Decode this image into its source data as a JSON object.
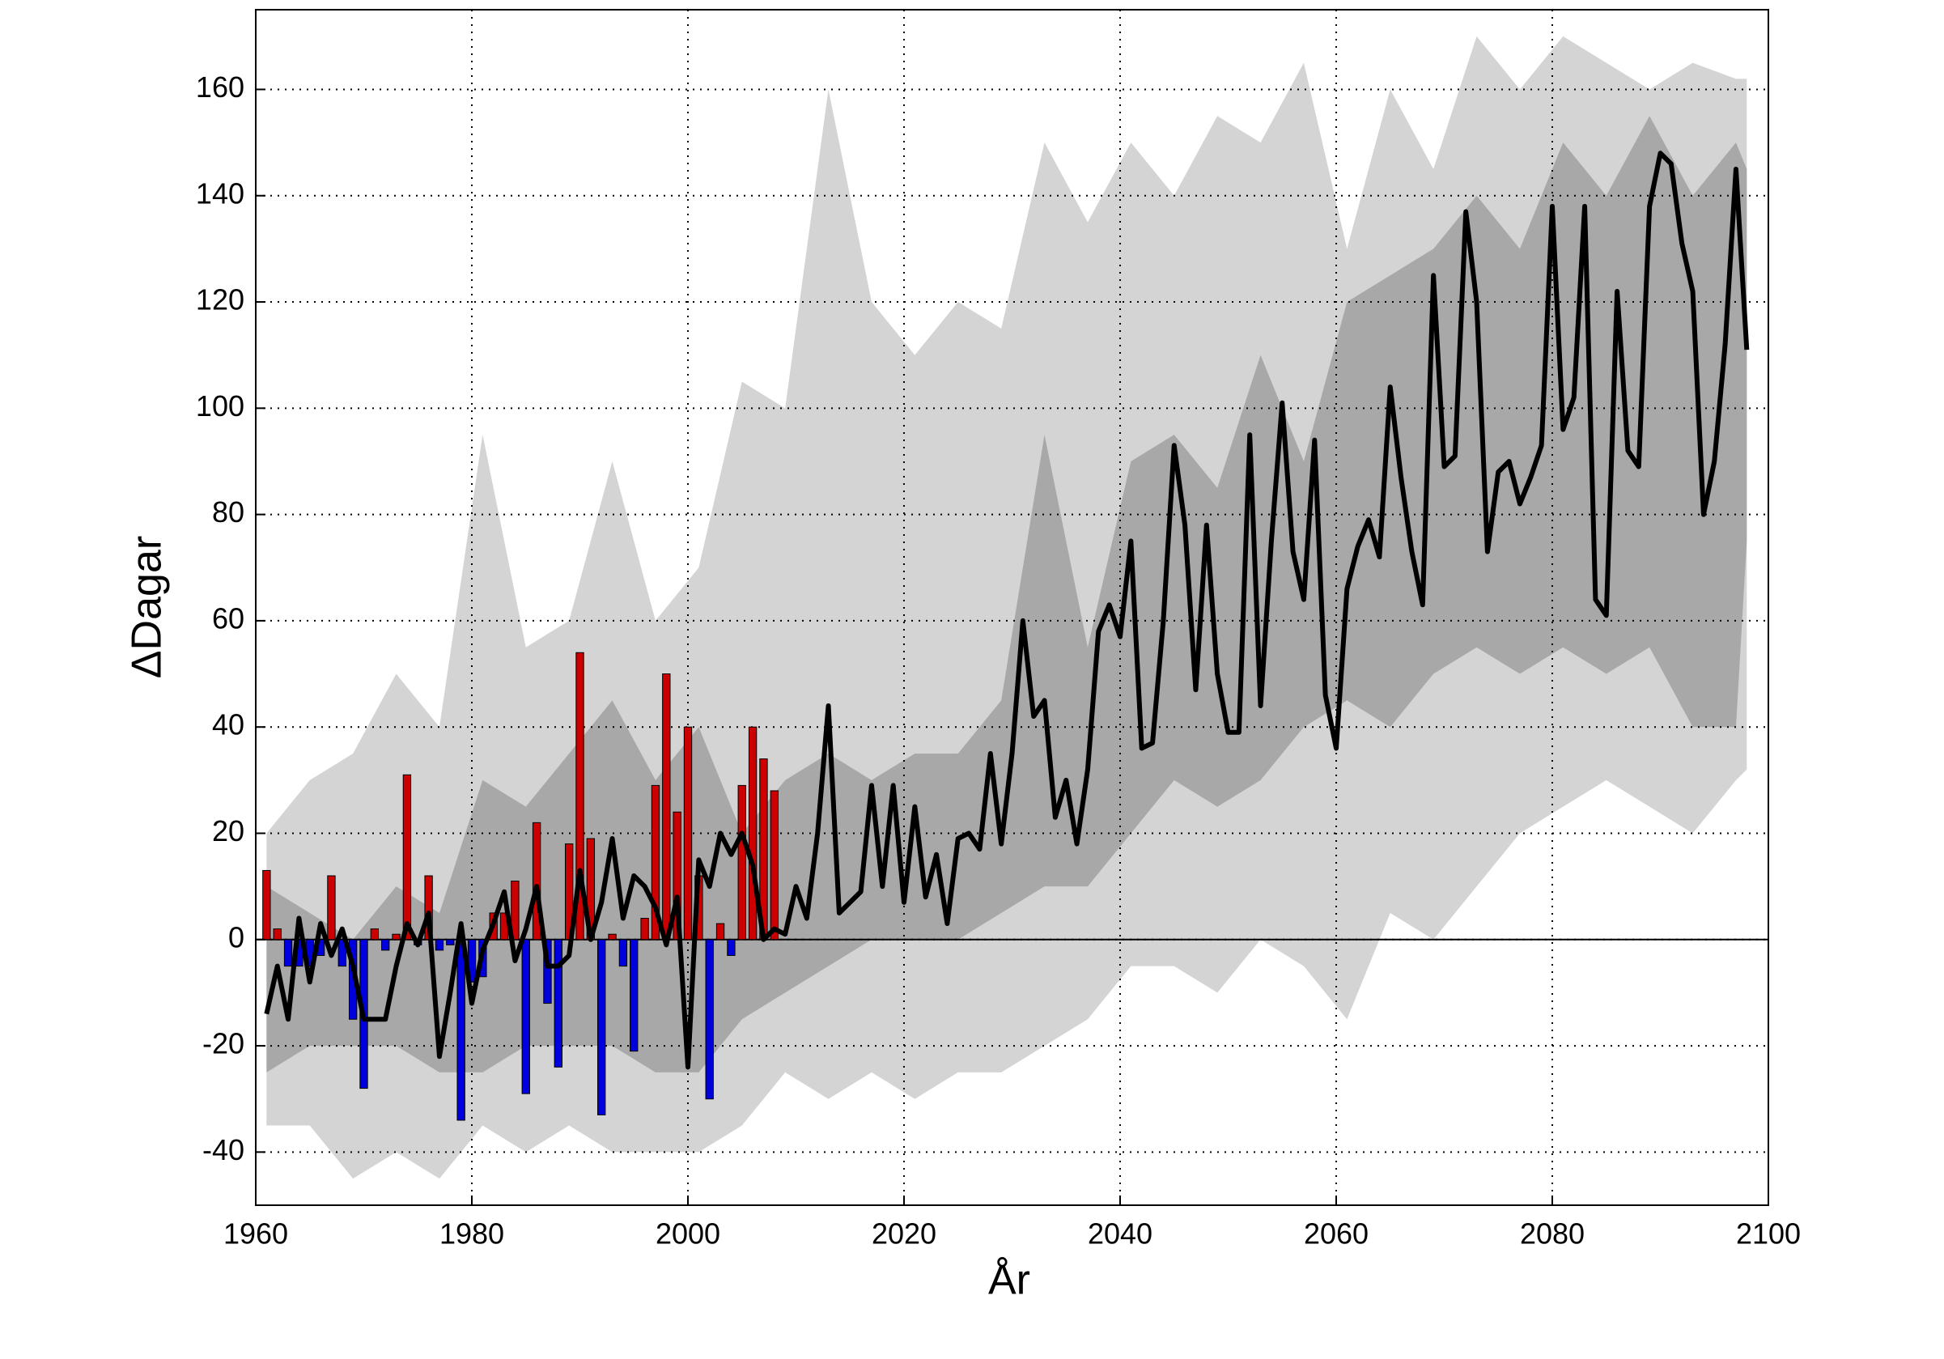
{
  "chart_data": {
    "type": "line",
    "xlabel": "År",
    "ylabel": "ΔDagar",
    "xlim": [
      1960,
      2100
    ],
    "ylim": [
      -50,
      175
    ],
    "xticks": [
      1960,
      1980,
      2000,
      2020,
      2040,
      2060,
      2080,
      2100
    ],
    "yticks": [
      -40,
      -20,
      0,
      20,
      40,
      60,
      80,
      100,
      120,
      140,
      160
    ],
    "grid": true,
    "bands": [
      {
        "color": "#d4d4d4",
        "x": [
          1961,
          1965,
          1969,
          1973,
          1977,
          1981,
          1985,
          1989,
          1993,
          1997,
          2001,
          2005,
          2009,
          2013,
          2017,
          2021,
          2025,
          2029,
          2033,
          2037,
          2041,
          2045,
          2049,
          2053,
          2057,
          2061,
          2065,
          2069,
          2073,
          2077,
          2081,
          2085,
          2089,
          2093,
          2097,
          2098
        ],
        "upper": [
          20,
          30,
          35,
          50,
          40,
          95,
          55,
          60,
          90,
          60,
          70,
          105,
          100,
          160,
          120,
          110,
          120,
          115,
          150,
          135,
          150,
          140,
          155,
          150,
          165,
          130,
          160,
          145,
          170,
          160,
          170,
          165,
          160,
          165,
          162,
          162
        ],
        "lower": [
          -35,
          -35,
          -45,
          -40,
          -45,
          -35,
          -40,
          -35,
          -40,
          -40,
          -40,
          -35,
          -25,
          -30,
          -25,
          -30,
          -25,
          -25,
          -20,
          -15,
          -5,
          -5,
          -10,
          0,
          -5,
          -15,
          5,
          0,
          10,
          20,
          25,
          30,
          25,
          20,
          30,
          32
        ]
      },
      {
        "color": "#a8a8a8",
        "x": [
          1961,
          1965,
          1969,
          1973,
          1977,
          1981,
          1985,
          1989,
          1993,
          1997,
          2001,
          2005,
          2009,
          2013,
          2017,
          2021,
          2025,
          2029,
          2033,
          2037,
          2041,
          2045,
          2049,
          2053,
          2057,
          2061,
          2065,
          2069,
          2073,
          2077,
          2081,
          2085,
          2089,
          2093,
          2097,
          2098
        ],
        "upper": [
          10,
          5,
          0,
          10,
          5,
          30,
          25,
          35,
          45,
          30,
          40,
          20,
          30,
          35,
          30,
          35,
          35,
          45,
          95,
          55,
          90,
          95,
          85,
          110,
          90,
          120,
          125,
          130,
          140,
          130,
          150,
          140,
          155,
          140,
          150,
          145
        ],
        "lower": [
          -25,
          -20,
          -20,
          -20,
          -25,
          -25,
          -20,
          -20,
          -20,
          -25,
          -25,
          -15,
          -10,
          -5,
          0,
          0,
          0,
          5,
          10,
          10,
          20,
          30,
          25,
          30,
          40,
          45,
          40,
          50,
          55,
          50,
          55,
          50,
          55,
          40,
          40,
          75
        ]
      }
    ],
    "bars": {
      "positive_color": "#cc0000",
      "negative_color": "#0000dd",
      "x_start": 1961,
      "values": [
        13,
        2,
        -5,
        -5,
        -5,
        -3,
        12,
        -5,
        -15,
        -28,
        2,
        -2,
        1,
        31,
        -1,
        12,
        -2,
        -1,
        -34,
        -8,
        -7,
        5,
        5,
        11,
        -29,
        22,
        -12,
        -24,
        18,
        54,
        19,
        -33,
        1,
        -5,
        -21,
        4,
        29,
        50,
        24,
        40,
        12,
        -30,
        3,
        -3,
        29,
        40,
        34,
        28
      ]
    },
    "line": {
      "color": "#000000",
      "x_start": 1961,
      "values": [
        -14,
        -5,
        -15,
        4,
        -8,
        3,
        -3,
        2,
        -5,
        -15,
        -15,
        -15,
        -5,
        3,
        -1,
        5,
        -22,
        -10,
        3,
        -12,
        -2,
        3,
        9,
        -4,
        2,
        10,
        -5,
        -5,
        -3,
        13,
        0,
        7,
        19,
        4,
        12,
        10,
        6,
        -1,
        8,
        -24,
        15,
        10,
        20,
        16,
        20,
        14,
        0,
        2,
        1,
        10,
        4,
        20,
        44,
        5,
        7,
        9,
        29,
        10,
        29,
        7,
        25,
        8,
        16,
        3,
        19,
        20,
        17,
        35,
        18,
        35,
        60,
        42,
        45,
        23,
        30,
        18,
        32,
        58,
        63,
        57,
        75,
        36,
        37,
        60,
        93,
        78,
        47,
        78,
        50,
        39,
        39,
        95,
        44,
        75,
        101,
        73,
        64,
        94,
        46,
        36,
        66,
        74,
        79,
        72,
        104,
        87,
        73,
        63,
        125,
        89,
        91,
        137,
        120,
        73,
        88,
        90,
        82,
        87,
        93,
        138,
        96,
        102,
        138,
        64,
        61,
        122,
        92,
        89,
        138,
        148,
        146,
        131,
        122,
        80,
        90,
        112,
        145,
        111
      ]
    }
  }
}
